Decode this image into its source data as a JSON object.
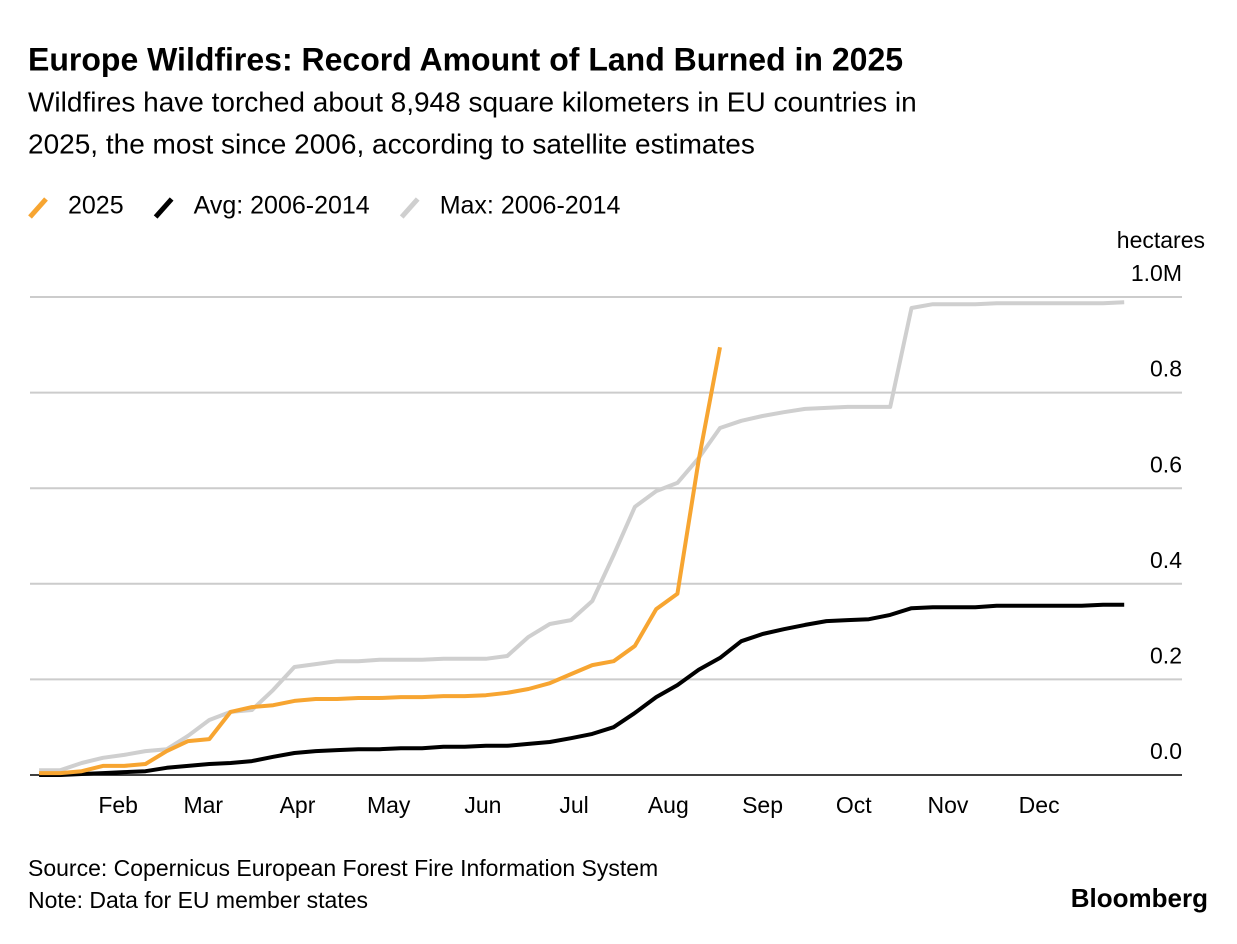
{
  "chart_data": {
    "type": "line",
    "title": "Europe Wildfires: Record Amount of Land Burned in 2025",
    "subtitle": [
      "Wildfires have torched about 8,948 square kilometers in EU countries in",
      "2025, the most since 2006, according to satellite estimates"
    ],
    "y_label": "hectares",
    "source": "Source: Copernicus European Forest Fire Information System",
    "note": "Note: Data for EU member states",
    "brand": "Bloomberg",
    "legend": "top-left",
    "grid": true,
    "x": [
      6,
      13,
      20,
      27,
      34,
      41,
      48,
      55,
      62,
      69,
      76,
      83,
      90,
      97,
      104,
      111,
      118,
      125,
      132,
      139,
      146,
      153,
      160,
      167,
      174,
      181,
      188,
      195,
      202,
      209,
      216,
      223,
      230,
      237,
      244,
      251,
      258,
      265,
      272,
      279,
      286,
      293,
      300,
      307,
      314,
      321,
      328,
      335,
      342,
      349,
      356,
      363
    ],
    "xlim": [
      3,
      382
    ],
    "xticks": [
      {
        "value": 32,
        "label": "Feb"
      },
      {
        "value": 60,
        "label": "Mar"
      },
      {
        "value": 91,
        "label": "Apr"
      },
      {
        "value": 121,
        "label": "May"
      },
      {
        "value": 152,
        "label": "Jun"
      },
      {
        "value": 182,
        "label": "Jul"
      },
      {
        "value": 213,
        "label": "Aug"
      },
      {
        "value": 244,
        "label": "Sep"
      },
      {
        "value": 274,
        "label": "Oct"
      },
      {
        "value": 305,
        "label": "Nov"
      },
      {
        "value": 335,
        "label": "Dec"
      }
    ],
    "ylim": [
      0,
      1
    ],
    "yticks": [
      {
        "value": 0,
        "label": "0.0"
      },
      0.2,
      0.4,
      0.6,
      0.8,
      {
        "value": 1,
        "label": "1.0M"
      }
    ],
    "series": [
      {
        "name": "Max: 2006-2014",
        "color": "#cfcfcf",
        "values": [
          0.01,
          0.01,
          0.025,
          0.036,
          0.042,
          0.05,
          0.054,
          0.082,
          0.115,
          0.132,
          0.136,
          0.178,
          0.226,
          0.232,
          0.238,
          0.238,
          0.241,
          0.241,
          0.241,
          0.243,
          0.243,
          0.243,
          0.249,
          0.289,
          0.316,
          0.324,
          0.364,
          0.46,
          0.561,
          0.594,
          0.611,
          0.663,
          0.726,
          0.741,
          0.751,
          0.759,
          0.766,
          0.768,
          0.77,
          0.77,
          0.77,
          0.977,
          0.985,
          0.985,
          0.985,
          0.987,
          0.987,
          0.987,
          0.987,
          0.987,
          0.987,
          0.989
        ]
      },
      {
        "name": "Avg: 2006-2014",
        "color": "#000000",
        "values": [
          0,
          0,
          0.002,
          0.004,
          0.006,
          0.008,
          0.015,
          0.019,
          0.023,
          0.025,
          0.029,
          0.038,
          0.046,
          0.05,
          0.052,
          0.054,
          0.054,
          0.056,
          0.056,
          0.059,
          0.059,
          0.061,
          0.061,
          0.065,
          0.069,
          0.077,
          0.086,
          0.1,
          0.13,
          0.163,
          0.188,
          0.22,
          0.245,
          0.28,
          0.295,
          0.305,
          0.314,
          0.322,
          0.324,
          0.326,
          0.335,
          0.349,
          0.351,
          0.351,
          0.351,
          0.354,
          0.354,
          0.354,
          0.354,
          0.354,
          0.356,
          0.356
        ]
      },
      {
        "name": "2025",
        "color": "#f7a531",
        "values": [
          0.004,
          0.004,
          0.008,
          0.019,
          0.019,
          0.023,
          0.05,
          0.071,
          0.075,
          0.132,
          0.142,
          0.146,
          0.155,
          0.159,
          0.159,
          0.161,
          0.161,
          0.163,
          0.163,
          0.165,
          0.165,
          0.167,
          0.172,
          0.18,
          0.192,
          0.211,
          0.23,
          0.238,
          0.27,
          0.347,
          0.379,
          0.659,
          0.895,
          null,
          null,
          null,
          null,
          null,
          null,
          null,
          null,
          null,
          null,
          null,
          null,
          null,
          null,
          null,
          null,
          null,
          null,
          null
        ]
      }
    ]
  }
}
